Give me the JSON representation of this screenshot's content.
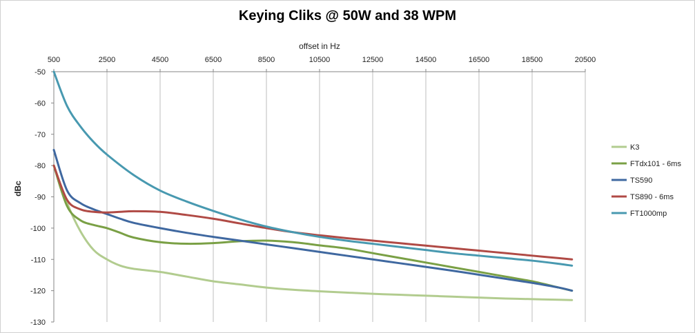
{
  "chart_data": {
    "type": "line",
    "title": "Keying Cliks @ 50W and 38 WPM",
    "xlabel": "offset in Hz",
    "ylabel": "dBc",
    "x_ticks": [
      500,
      2500,
      4500,
      6500,
      8500,
      10500,
      12500,
      14500,
      16500,
      18500,
      20500
    ],
    "y_ticks": [
      -50,
      -60,
      -70,
      -80,
      -90,
      -100,
      -110,
      -120,
      -130
    ],
    "xlim": [
      500,
      20500
    ],
    "ylim": [
      -130,
      -50
    ],
    "x_axis_position": "top",
    "grid": "vertical",
    "legend_position": "right",
    "series": [
      {
        "name": "K3",
        "color": "#b2cc8f",
        "x": [
          500,
          1000,
          1500,
          2000,
          2500,
          3000,
          3500,
          4500,
          5500,
          6500,
          7500,
          8500,
          9500,
          10500,
          11500,
          12500,
          13500,
          14500,
          15500,
          16500,
          17500,
          18500,
          19500,
          20000
        ],
        "y": [
          -80,
          -92,
          -101,
          -107,
          -110,
          -112,
          -113,
          -114,
          -115.5,
          -117,
          -118,
          -119,
          -119.7,
          -120.2,
          -120.6,
          -121,
          -121.3,
          -121.6,
          -121.9,
          -122.2,
          -122.5,
          -122.7,
          -122.9,
          -123
        ]
      },
      {
        "name": "FTdx101 - 6ms",
        "color": "#7aa045",
        "x": [
          500,
          1000,
          1500,
          2000,
          2500,
          3000,
          3500,
          4500,
          5500,
          6500,
          7500,
          8500,
          9500,
          10500,
          11500,
          12500,
          13500,
          14500,
          15500,
          16500,
          17500,
          18500,
          19500,
          20000
        ],
        "y": [
          -80,
          -93,
          -97.5,
          -99,
          -100,
          -101.5,
          -103,
          -104.5,
          -105,
          -104.8,
          -104.2,
          -104,
          -104.5,
          -105.5,
          -106.5,
          -108,
          -109.5,
          -111,
          -112.5,
          -114,
          -115.5,
          -117,
          -119,
          -120
        ]
      },
      {
        "name": "TS590",
        "color": "#3f68a0",
        "x": [
          500,
          1000,
          1500,
          2000,
          2500,
          3000,
          3500,
          4500,
          5500,
          6500,
          7500,
          8500,
          9500,
          10500,
          11500,
          12500,
          13500,
          14500,
          15500,
          16500,
          17500,
          18500,
          19500,
          20000
        ],
        "y": [
          -75,
          -88,
          -92,
          -94,
          -95.5,
          -97,
          -98.3,
          -100,
          -101.5,
          -102.8,
          -104,
          -105.2,
          -106.4,
          -107.6,
          -108.8,
          -110,
          -111.2,
          -112.4,
          -113.6,
          -114.9,
          -116.2,
          -117.5,
          -119,
          -120
        ]
      },
      {
        "name": "TS890 - 6ms",
        "color": "#b04a45",
        "x": [
          500,
          1000,
          1500,
          2000,
          2500,
          3000,
          3500,
          4500,
          5500,
          6500,
          7500,
          8500,
          9500,
          10500,
          11500,
          12500,
          13500,
          14500,
          15500,
          16500,
          17500,
          18500,
          19500,
          20000
        ],
        "y": [
          -80,
          -91,
          -94,
          -94.8,
          -95,
          -94.8,
          -94.6,
          -94.8,
          -95.8,
          -97,
          -98.5,
          -100,
          -101.3,
          -102.3,
          -103.2,
          -104,
          -104.8,
          -105.6,
          -106.4,
          -107.2,
          -108,
          -108.8,
          -109.6,
          -110
        ]
      },
      {
        "name": "FT1000mp",
        "color": "#4899b0",
        "x": [
          500,
          1000,
          1500,
          2000,
          2500,
          3500,
          4500,
          5500,
          6500,
          7500,
          8500,
          9500,
          10500,
          11500,
          12500,
          13500,
          14500,
          15500,
          16500,
          17500,
          18500,
          19500,
          20000
        ],
        "y": [
          -50,
          -61,
          -67.5,
          -72.5,
          -76.5,
          -83,
          -88,
          -91.5,
          -94.5,
          -97.2,
          -99.5,
          -101.3,
          -102.8,
          -104,
          -105,
          -106,
          -107,
          -108,
          -108.8,
          -109.6,
          -110.4,
          -111.4,
          -112
        ]
      }
    ]
  }
}
